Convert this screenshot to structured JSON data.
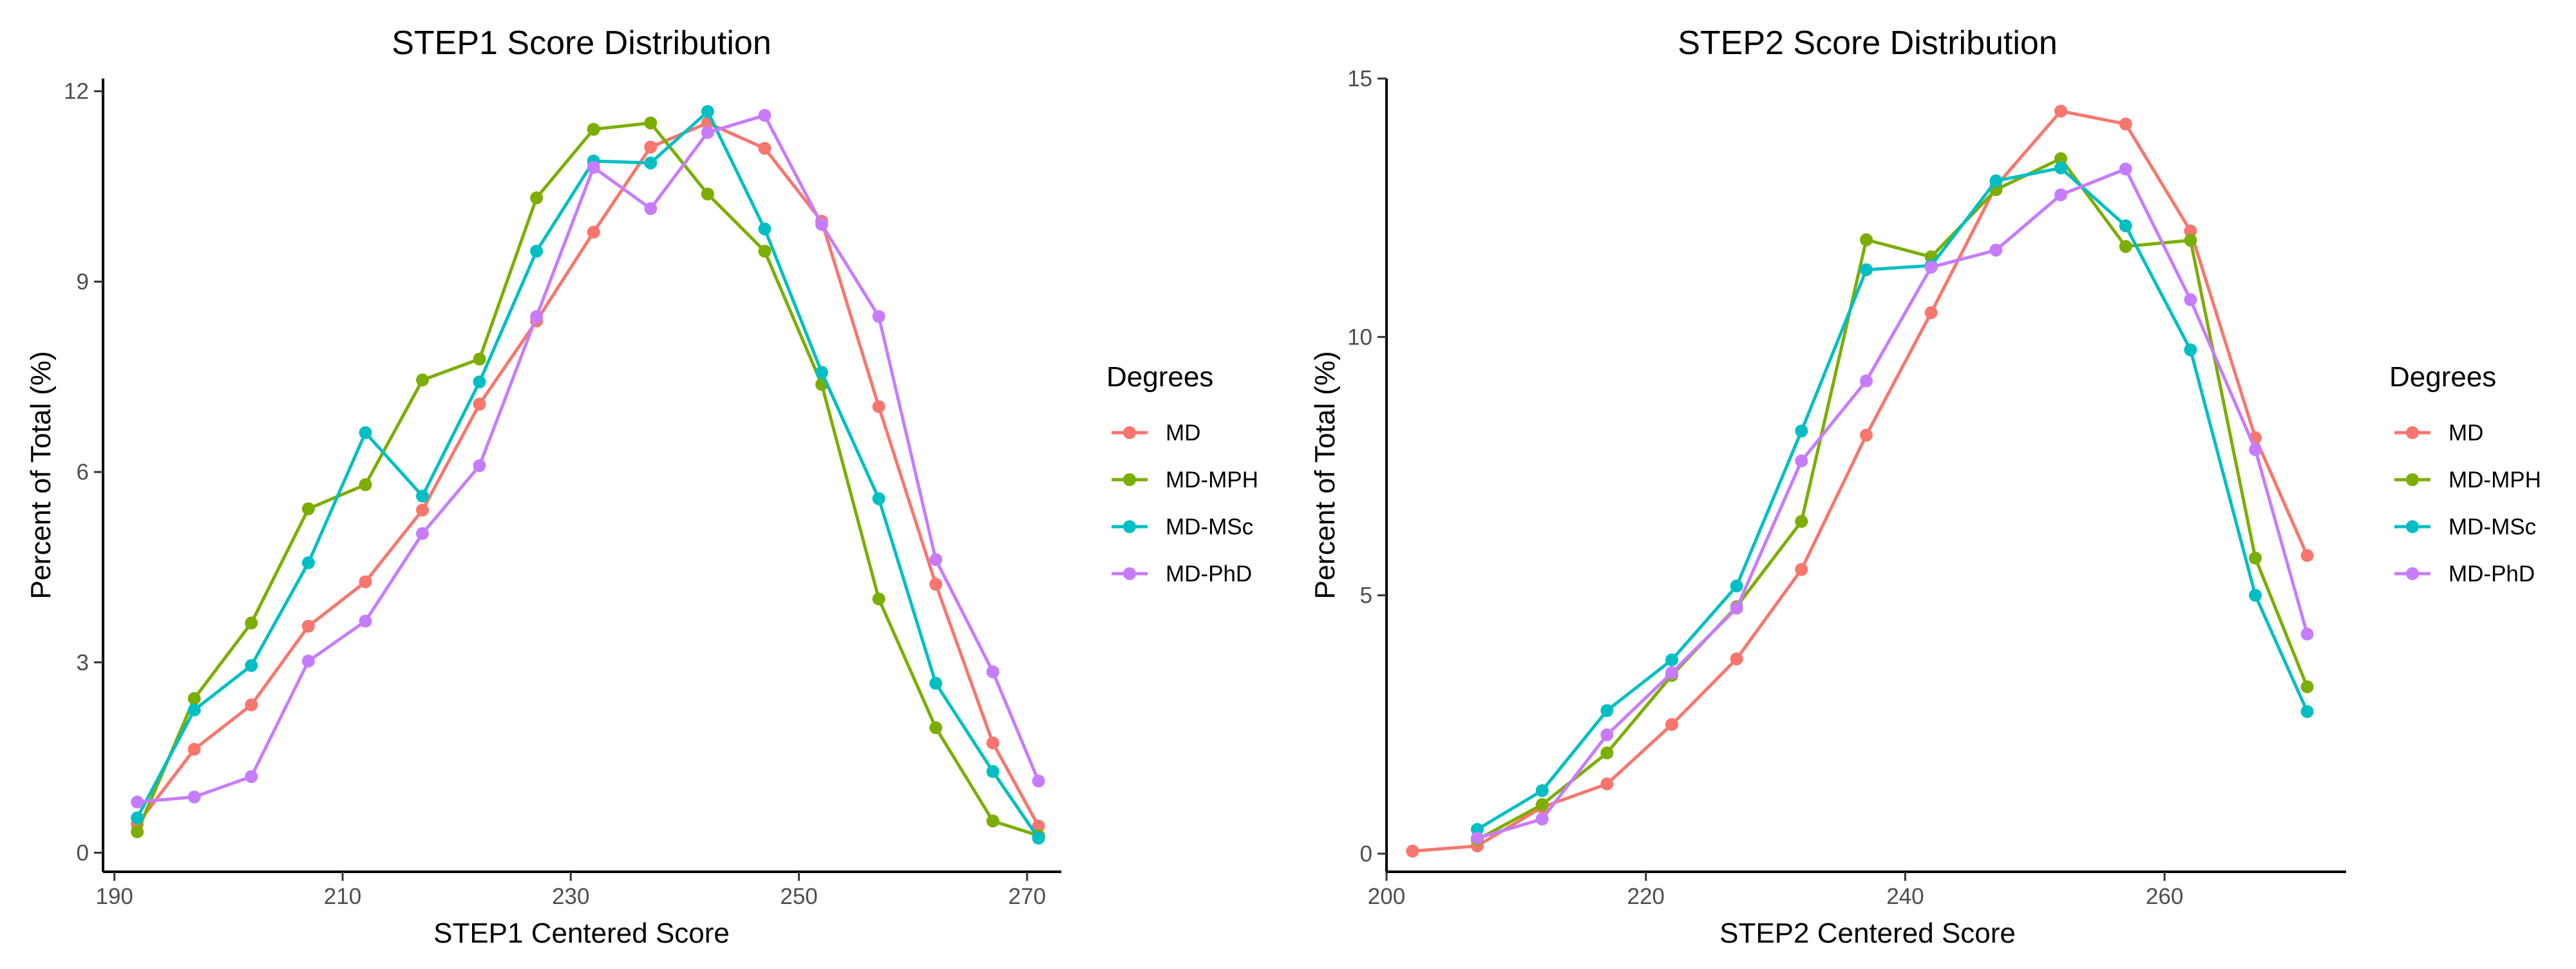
{
  "chart_data": [
    {
      "type": "line",
      "title": "STEP1 Score Distribution",
      "xlabel": "STEP1 Centered Score",
      "ylabel": "Percent of Total (%)",
      "xlim": [
        189,
        273
      ],
      "ylim": [
        -0.3,
        12.2
      ],
      "x_ticks": [
        190,
        210,
        230,
        250,
        270
      ],
      "y_ticks": [
        0,
        3,
        6,
        9,
        12
      ],
      "grid": false,
      "legend": {
        "title": "Degrees",
        "position": "right"
      },
      "series": [
        {
          "name": "MD",
          "color": "#F8766D",
          "x": [
            192,
            197,
            202,
            207,
            212,
            217,
            222,
            227,
            232,
            237,
            242,
            247,
            252,
            257,
            262,
            267,
            271
          ],
          "y": [
            0.45,
            1.63,
            2.33,
            3.57,
            4.27,
            5.4,
            7.07,
            8.38,
            9.78,
            11.12,
            11.5,
            11.1,
            9.95,
            7.03,
            4.23,
            1.73,
            0.42
          ]
        },
        {
          "name": "MD-MPH",
          "color": "#7CAE00",
          "x": [
            192,
            197,
            202,
            207,
            212,
            217,
            222,
            227,
            232,
            237,
            242,
            247,
            252,
            257,
            262,
            267,
            271
          ],
          "y": [
            0.33,
            2.43,
            3.62,
            5.42,
            5.8,
            7.45,
            7.78,
            10.32,
            11.4,
            11.5,
            10.38,
            9.48,
            7.38,
            4.0,
            1.97,
            0.5,
            0.27
          ]
        },
        {
          "name": "MD-MSc",
          "color": "#00BFC4",
          "x": [
            192,
            197,
            202,
            207,
            212,
            217,
            222,
            227,
            232,
            237,
            242,
            247,
            252,
            257,
            262,
            267,
            271
          ],
          "y": [
            0.55,
            2.25,
            2.95,
            4.57,
            6.62,
            5.62,
            7.42,
            9.48,
            10.9,
            10.87,
            11.68,
            9.83,
            7.57,
            5.58,
            2.67,
            1.28,
            0.23
          ]
        },
        {
          "name": "MD-PhD",
          "color": "#C77CFF",
          "x": [
            192,
            197,
            202,
            207,
            212,
            217,
            222,
            227,
            232,
            237,
            242,
            247,
            252,
            257,
            262,
            267,
            271
          ],
          "y": [
            0.8,
            0.88,
            1.2,
            3.02,
            3.65,
            5.03,
            6.1,
            8.45,
            10.8,
            10.15,
            11.35,
            11.62,
            9.9,
            8.45,
            4.62,
            2.85,
            1.13
          ]
        }
      ]
    },
    {
      "type": "line",
      "title": "STEP2 Score Distribution",
      "xlabel": "STEP2 Centered Score",
      "ylabel": "Percent of Total (%)",
      "xlim": [
        200,
        274
      ],
      "ylim": [
        -0.35,
        15.0
      ],
      "x_ticks": [
        200,
        220,
        240,
        260
      ],
      "y_ticks": [
        0,
        5,
        10,
        15
      ],
      "grid": false,
      "legend": {
        "title": "Degrees",
        "position": "right"
      },
      "series": [
        {
          "name": "MD",
          "color": "#F8766D",
          "x": [
            202,
            207,
            212,
            217,
            222,
            227,
            232,
            237,
            242,
            247,
            252,
            257,
            262,
            267,
            271
          ],
          "y": [
            0.05,
            0.15,
            0.9,
            1.35,
            2.5,
            3.77,
            5.5,
            8.1,
            10.47,
            12.92,
            14.37,
            14.12,
            12.05,
            8.05,
            5.77
          ]
        },
        {
          "name": "MD-MPH",
          "color": "#7CAE00",
          "x": [
            207,
            212,
            217,
            222,
            227,
            232,
            237,
            242,
            247,
            252,
            257,
            262,
            267,
            271
          ],
          "y": [
            0.27,
            0.95,
            1.95,
            3.45,
            4.78,
            6.43,
            11.88,
            11.55,
            12.85,
            13.45,
            11.75,
            11.87,
            5.72,
            3.23
          ]
        },
        {
          "name": "MD-MSc",
          "color": "#00BFC4",
          "x": [
            207,
            212,
            217,
            222,
            227,
            232,
            237,
            242,
            247,
            252,
            257,
            262,
            267,
            271
          ],
          "y": [
            0.47,
            1.22,
            2.77,
            3.75,
            5.18,
            8.18,
            11.3,
            11.38,
            13.02,
            13.27,
            12.15,
            9.75,
            5.0,
            2.75
          ]
        },
        {
          "name": "MD-PhD",
          "color": "#C77CFF",
          "x": [
            207,
            212,
            217,
            222,
            227,
            232,
            237,
            242,
            247,
            252,
            257,
            262,
            267,
            271
          ],
          "y": [
            0.3,
            0.67,
            2.3,
            3.5,
            4.75,
            7.6,
            9.15,
            11.35,
            11.68,
            12.75,
            13.25,
            10.72,
            7.82,
            4.25
          ]
        }
      ]
    }
  ]
}
